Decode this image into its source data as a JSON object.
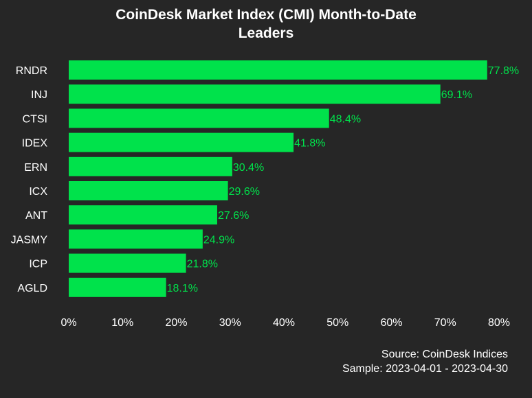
{
  "chart_data": {
    "type": "bar",
    "orientation": "horizontal",
    "title": "CoinDesk Market Index (CMI) Month-to-Date Leaders",
    "title_lines": [
      "CoinDesk Market Index (CMI) Month-to-Date",
      "Leaders"
    ],
    "categories": [
      "RNDR",
      "INJ",
      "CTSI",
      "IDEX",
      "ERN",
      "ICX",
      "ANT",
      "JASMY",
      "ICP",
      "AGLD"
    ],
    "values": [
      77.8,
      69.1,
      48.4,
      41.8,
      30.4,
      29.6,
      27.6,
      24.9,
      21.8,
      18.1
    ],
    "value_labels": [
      "77.8%",
      "69.1%",
      "48.4%",
      "41.8%",
      "30.4%",
      "29.6%",
      "27.6%",
      "24.9%",
      "21.8%",
      "18.1%"
    ],
    "xlim": [
      0,
      80
    ],
    "xticks": [
      0,
      10,
      20,
      30,
      40,
      50,
      60,
      70,
      80
    ],
    "xtick_labels": [
      "0%",
      "10%",
      "20%",
      "30%",
      "40%",
      "50%",
      "60%",
      "70%",
      "80%"
    ],
    "grid": false,
    "legend": "none",
    "xlabel": "",
    "ylabel": ""
  },
  "footer": {
    "source": "Source: CoinDesk Indices",
    "sample": "Sample: 2023-04-01 - 2023-04-30"
  },
  "colors": {
    "background": "#262626",
    "bar": "#00e24b",
    "value_label": "#00e24b",
    "text": "#ffffff"
  }
}
